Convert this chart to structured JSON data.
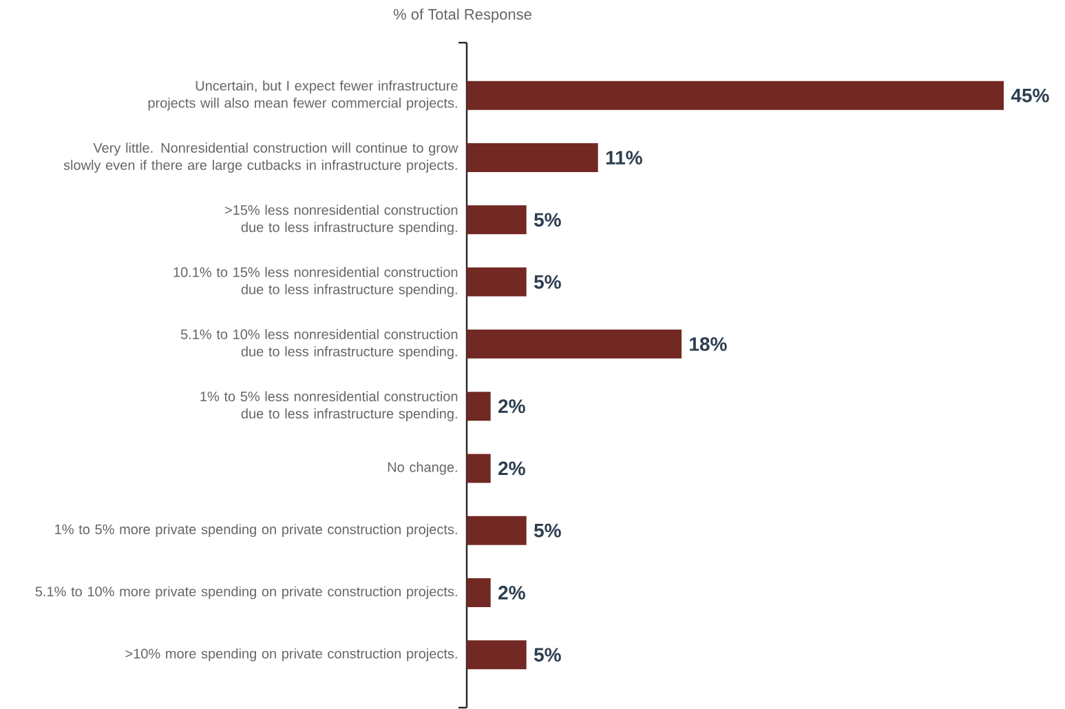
{
  "chart_data": {
    "type": "bar",
    "orientation": "horizontal",
    "title": "% of Total Response",
    "categories": [
      "Uncertain, but I expect fewer infrastructure projects will also mean fewer commercial projects.",
      "Very little. Nonresidential construction will continue to grow slowly even if there are large cutbacks in infrastructure projects.",
      ">15% less nonresidential construction due to less infrastructure spending.",
      "10.1% to 15% less nonresidential construction due to less infrastructure spending.",
      "5.1% to 10% less nonresidential construction due to less infrastructure spending.",
      "1% to 5% less nonresidential construction due to less infrastructure spending.",
      "No change.",
      "1% to 5% more private spending on private construction projects.",
      "5.1% to 10% more private spending on private construction projects.",
      ">10% more spending on private construction projects."
    ],
    "values": [
      45,
      11,
      5,
      5,
      18,
      2,
      2,
      5,
      2,
      5
    ],
    "value_labels": [
      "45%",
      "11%",
      "5%",
      "5%",
      "18%",
      "2%",
      "2%",
      "5%",
      "2%",
      "5%"
    ],
    "color": "#722823"
  }
}
